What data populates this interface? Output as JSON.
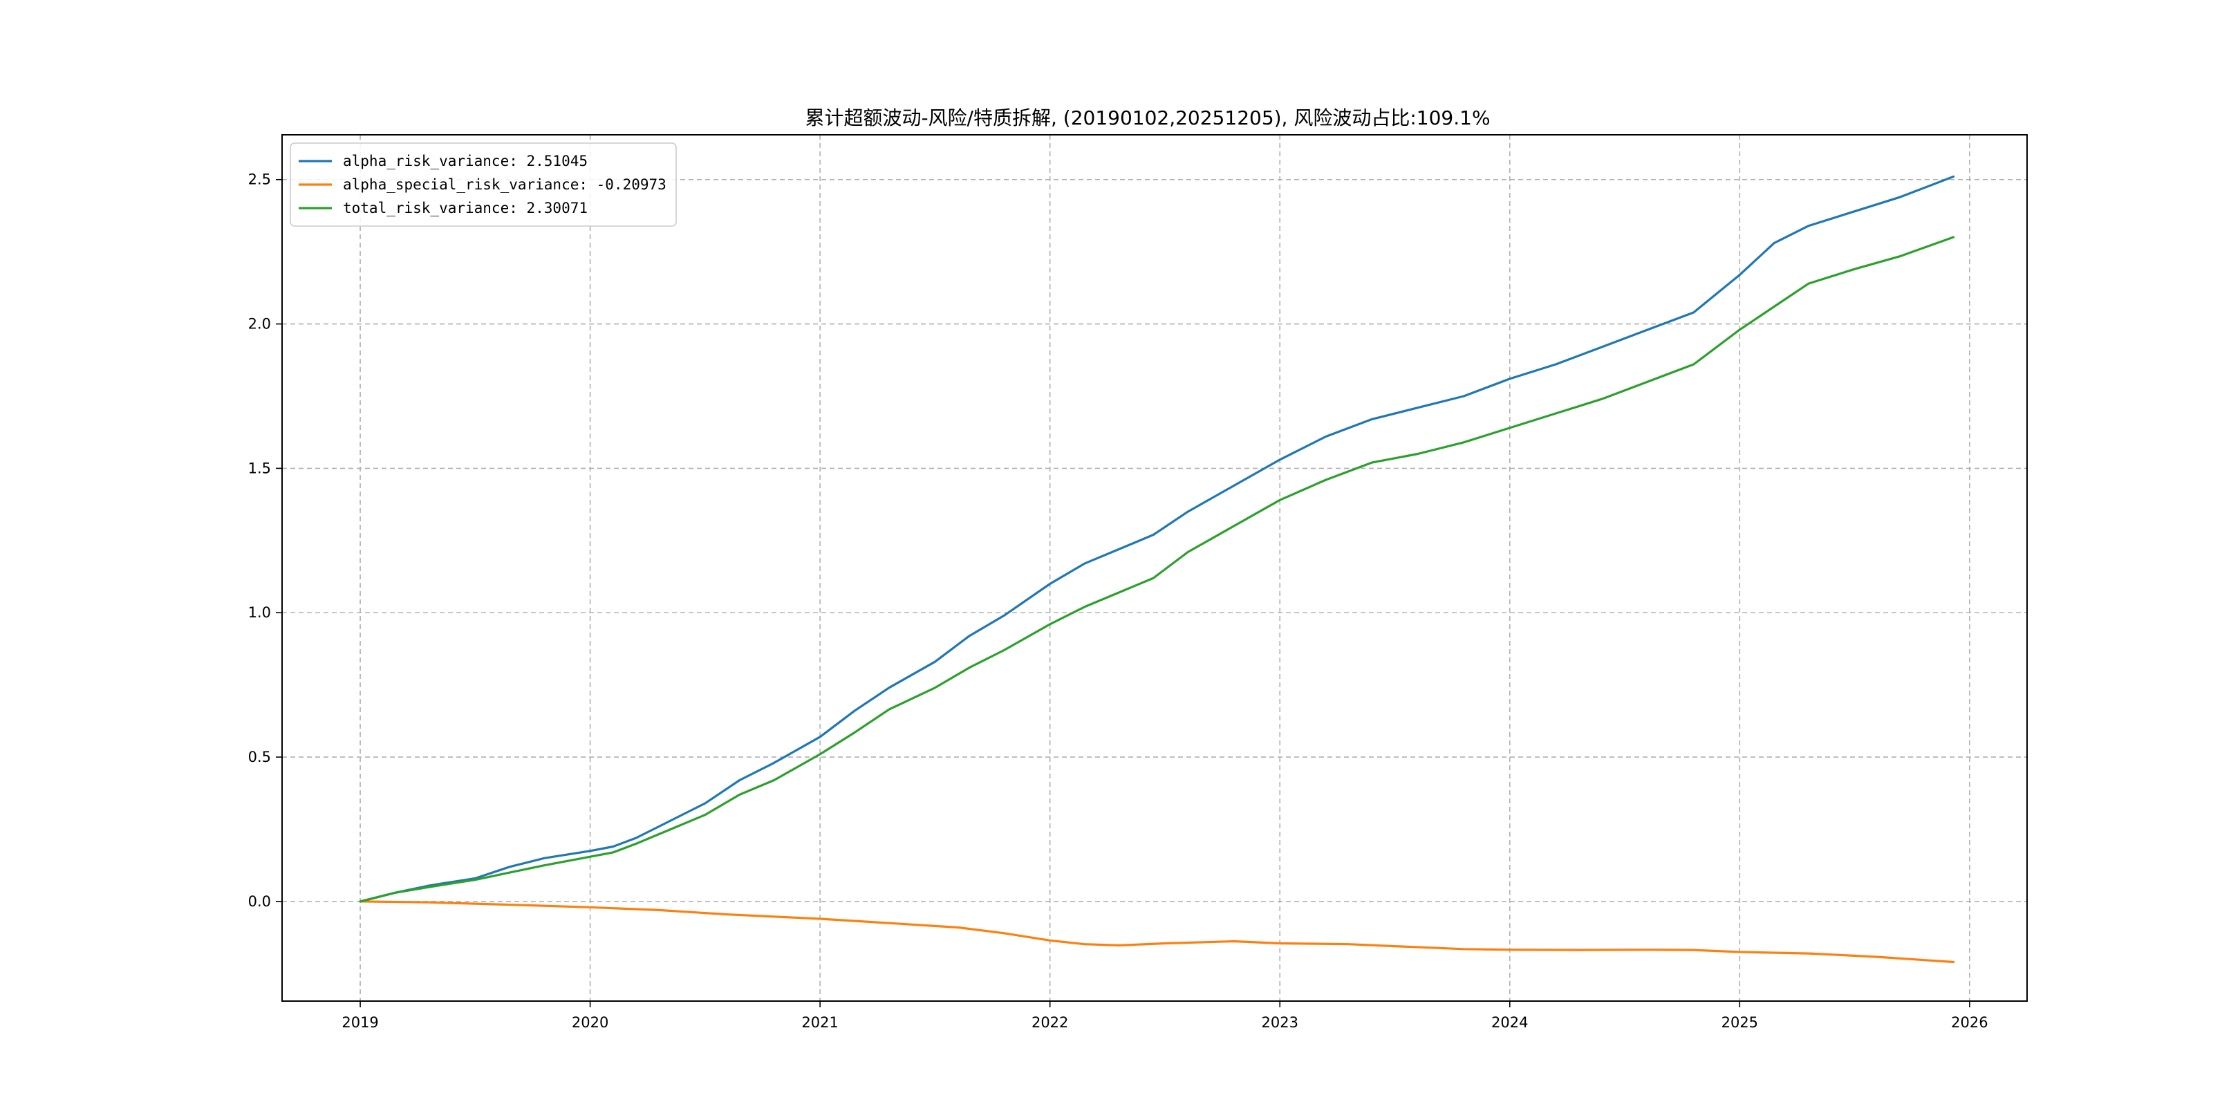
{
  "chart_data": {
    "type": "line",
    "title": "累计超额波动-风险/特质拆解, (20190102,20251205), 风险波动占比:109.1%",
    "xlabel": "",
    "ylabel": "",
    "x_ticks": [
      "2019",
      "2020",
      "2021",
      "2022",
      "2023",
      "2024",
      "2025",
      "2026"
    ],
    "y_ticks": [
      "0.0",
      "0.5",
      "1.0",
      "1.5",
      "2.0",
      "2.5"
    ],
    "xlim": [
      2018.66,
      2026.25
    ],
    "ylim": [
      -0.345,
      2.655
    ],
    "grid": true,
    "legend_position": "top-left",
    "series": [
      {
        "name": "alpha_risk_variance: 2.51045",
        "color": "#1f77b4",
        "x": [
          2019.0,
          2019.15,
          2019.3,
          2019.5,
          2019.65,
          2019.8,
          2020.0,
          2020.1,
          2020.2,
          2020.35,
          2020.5,
          2020.65,
          2020.8,
          2021.0,
          2021.15,
          2021.3,
          2021.5,
          2021.65,
          2021.8,
          2022.0,
          2022.15,
          2022.3,
          2022.45,
          2022.6,
          2022.8,
          2023.0,
          2023.2,
          2023.4,
          2023.6,
          2023.8,
          2024.0,
          2024.2,
          2024.4,
          2024.6,
          2024.8,
          2025.0,
          2025.15,
          2025.3,
          2025.5,
          2025.7,
          2025.93
        ],
        "y": [
          0.0,
          0.03,
          0.055,
          0.08,
          0.12,
          0.15,
          0.175,
          0.19,
          0.22,
          0.28,
          0.34,
          0.42,
          0.48,
          0.57,
          0.66,
          0.74,
          0.83,
          0.92,
          0.99,
          1.1,
          1.17,
          1.22,
          1.27,
          1.35,
          1.44,
          1.53,
          1.61,
          1.67,
          1.71,
          1.75,
          1.81,
          1.86,
          1.92,
          1.98,
          2.04,
          2.17,
          2.28,
          2.34,
          2.39,
          2.44,
          2.51045
        ]
      },
      {
        "name": "alpha_special_risk_variance: -0.20973",
        "color": "#ff7f0e",
        "x": [
          2019.0,
          2019.3,
          2019.6,
          2020.0,
          2020.3,
          2020.6,
          2021.0,
          2021.3,
          2021.6,
          2021.8,
          2022.0,
          2022.15,
          2022.3,
          2022.5,
          2022.8,
          2023.0,
          2023.3,
          2023.5,
          2023.8,
          2024.0,
          2024.3,
          2024.6,
          2024.8,
          2025.0,
          2025.3,
          2025.6,
          2025.93
        ],
        "y": [
          0.0,
          -0.003,
          -0.01,
          -0.02,
          -0.03,
          -0.045,
          -0.06,
          -0.075,
          -0.09,
          -0.11,
          -0.135,
          -0.148,
          -0.152,
          -0.145,
          -0.138,
          -0.145,
          -0.148,
          -0.155,
          -0.165,
          -0.167,
          -0.168,
          -0.167,
          -0.168,
          -0.175,
          -0.18,
          -0.192,
          -0.20973
        ]
      },
      {
        "name": "total_risk_variance: 2.30071",
        "color": "#2ca02c",
        "x": [
          2019.0,
          2019.15,
          2019.3,
          2019.5,
          2019.65,
          2019.8,
          2020.0,
          2020.1,
          2020.2,
          2020.35,
          2020.5,
          2020.65,
          2020.8,
          2021.0,
          2021.15,
          2021.3,
          2021.5,
          2021.65,
          2021.8,
          2022.0,
          2022.15,
          2022.3,
          2022.45,
          2022.6,
          2022.8,
          2023.0,
          2023.2,
          2023.4,
          2023.6,
          2023.8,
          2024.0,
          2024.2,
          2024.4,
          2024.6,
          2024.8,
          2025.0,
          2025.15,
          2025.3,
          2025.5,
          2025.7,
          2025.93
        ],
        "y": [
          0.0,
          0.03,
          0.05,
          0.075,
          0.1,
          0.125,
          0.155,
          0.17,
          0.2,
          0.25,
          0.3,
          0.37,
          0.42,
          0.51,
          0.585,
          0.665,
          0.74,
          0.81,
          0.87,
          0.96,
          1.02,
          1.07,
          1.12,
          1.21,
          1.3,
          1.39,
          1.46,
          1.52,
          1.55,
          1.59,
          1.64,
          1.69,
          1.74,
          1.8,
          1.86,
          1.98,
          2.06,
          2.14,
          2.19,
          2.235,
          2.30071
        ]
      }
    ]
  }
}
